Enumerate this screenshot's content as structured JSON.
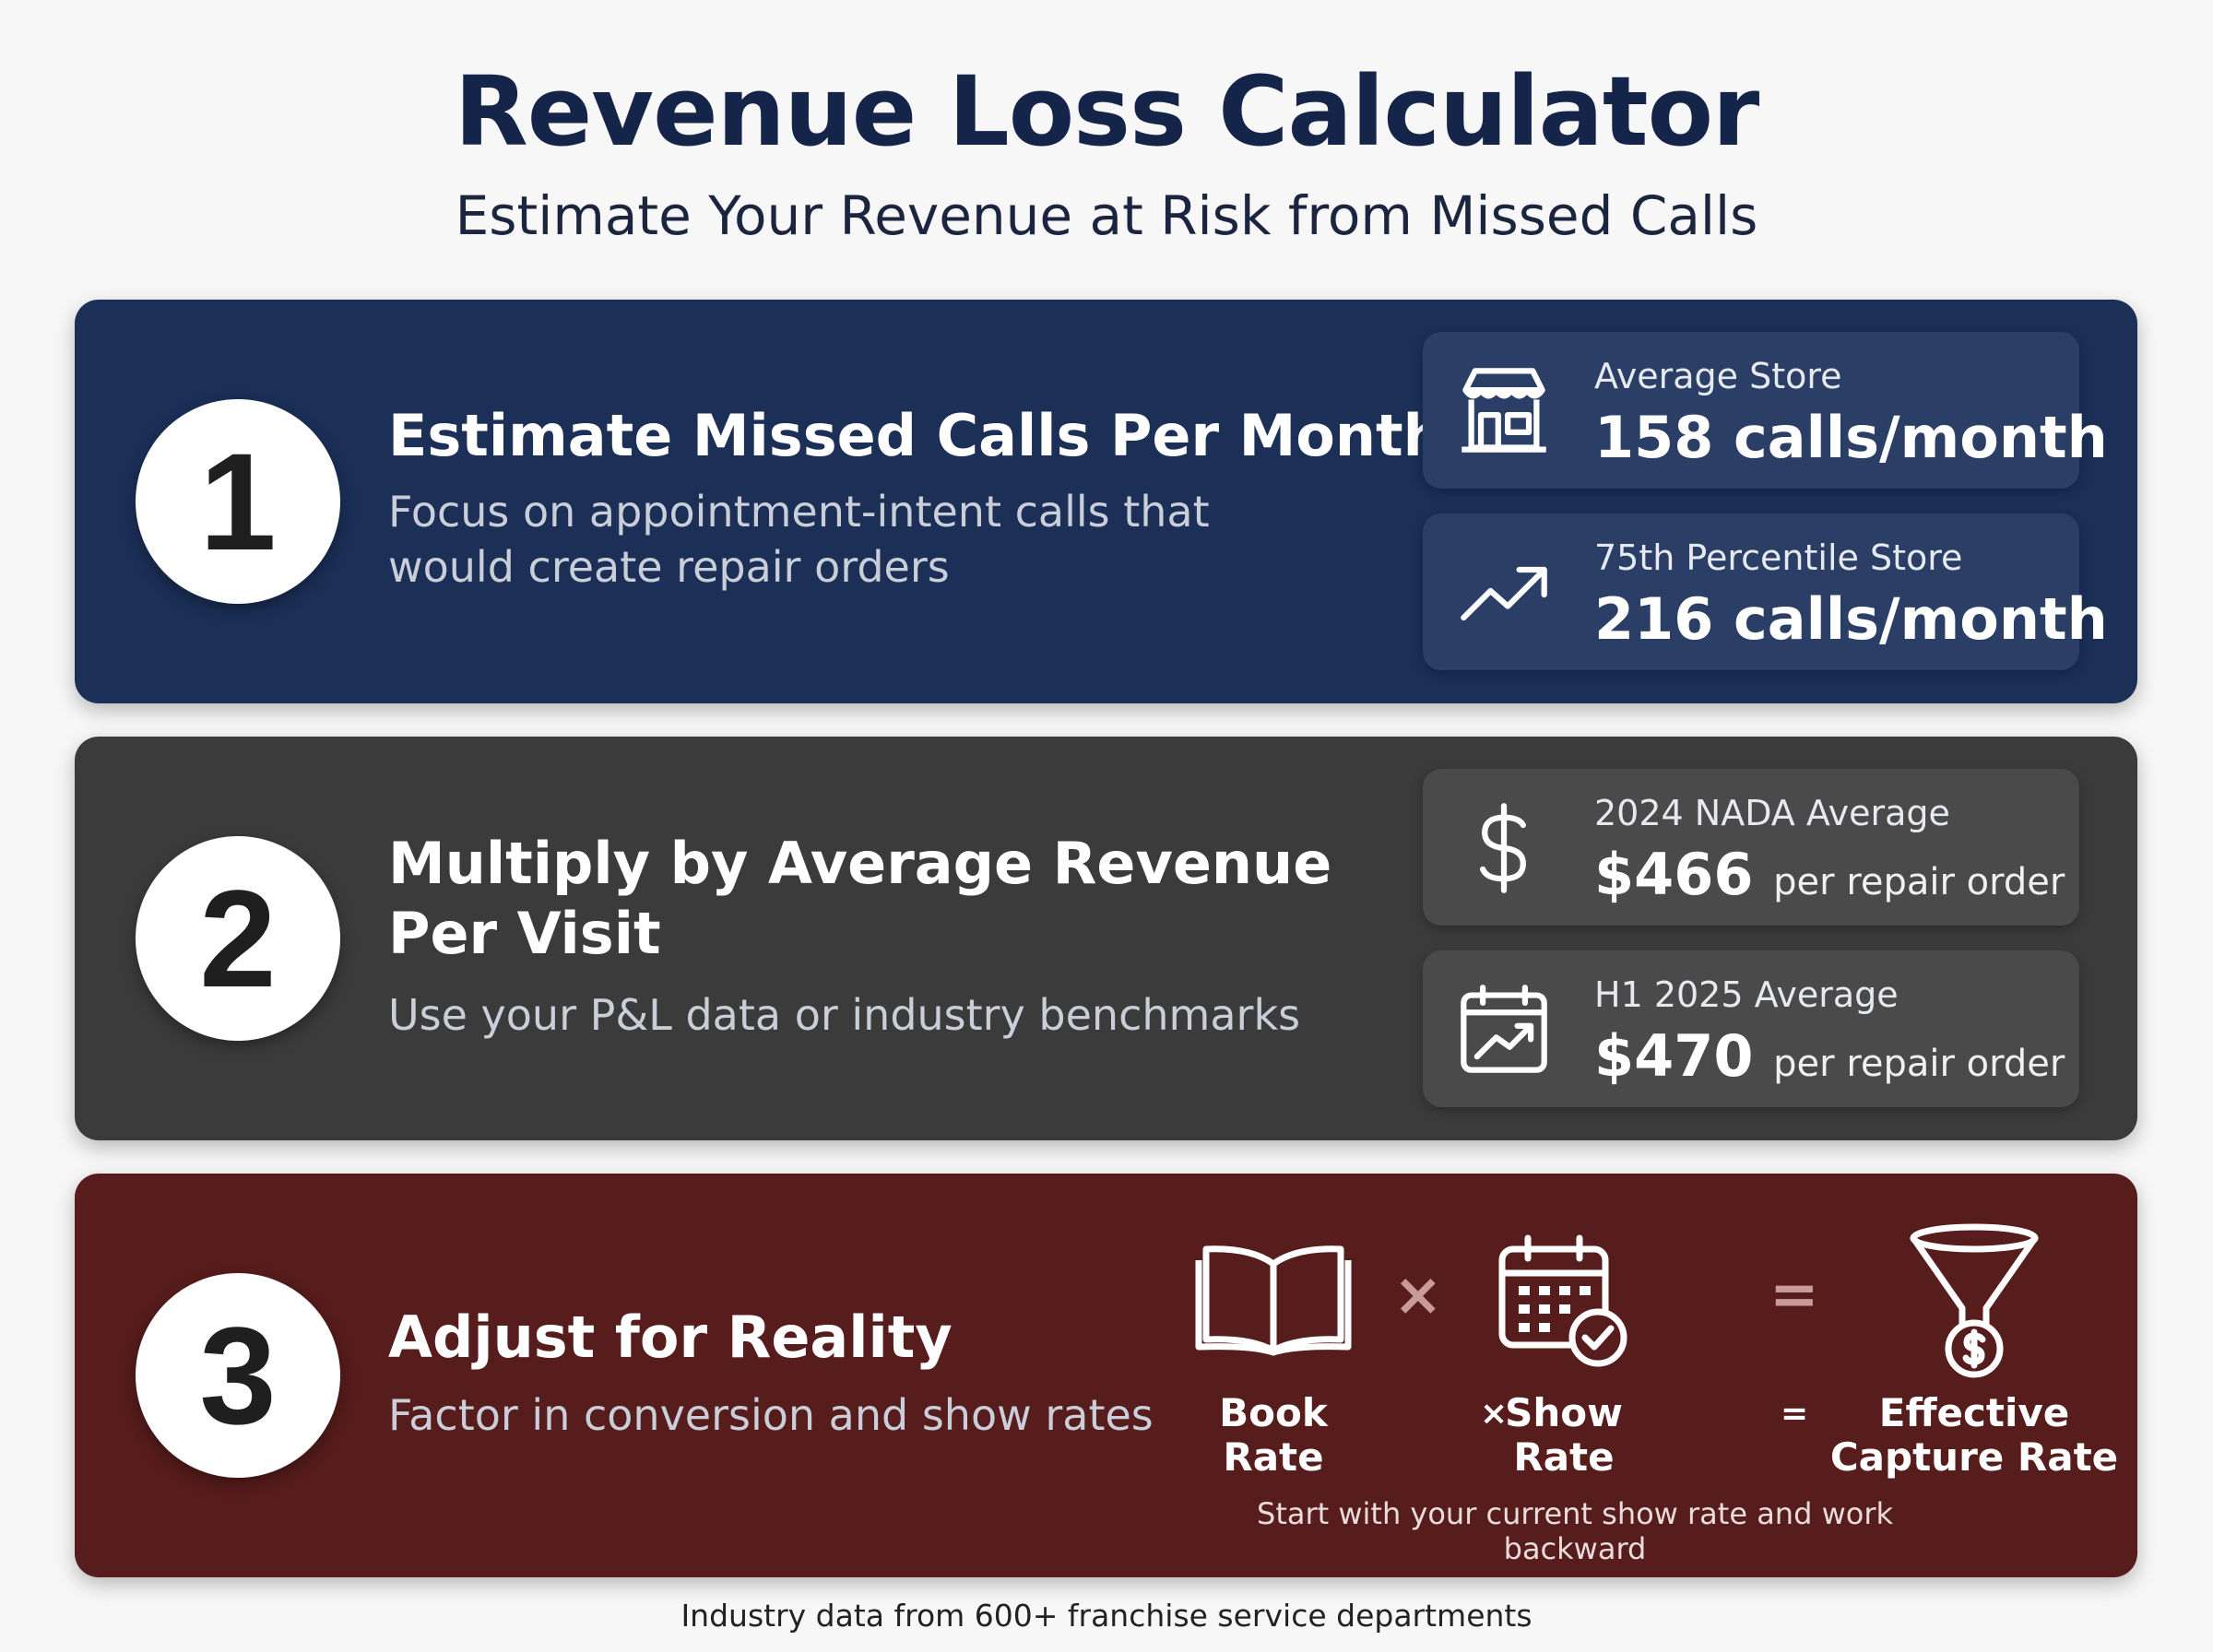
{
  "header": {
    "title": "Revenue Loss Calculator",
    "subtitle": "Estimate Your Revenue at Risk from Missed Calls"
  },
  "steps": [
    {
      "number": "1",
      "heading_lines": [
        "Estimate Missed Calls Per Month"
      ],
      "description_lines": [
        "Focus on appointment-intent calls that",
        "would create repair orders"
      ],
      "color": "#1b2f57",
      "stats": [
        {
          "icon": "store-icon",
          "label": "Average Store",
          "value": "158 calls/month",
          "unit": ""
        },
        {
          "icon": "trend-up-icon",
          "label": "75th Percentile Store",
          "value": "216 calls/month",
          "unit": ""
        }
      ]
    },
    {
      "number": "2",
      "heading_lines": [
        "Multiply by Average Revenue",
        "Per Visit"
      ],
      "description_lines": [
        "Use your P&L data or industry benchmarks"
      ],
      "color": "#3b3b3b",
      "stats": [
        {
          "icon": "dollar-icon",
          "label": "2024 NADA Average",
          "value": "$466",
          "unit": "per repair order"
        },
        {
          "icon": "calendar-chart-icon",
          "label": "H1 2025 Average",
          "value": "$470",
          "unit": "per repair order"
        }
      ]
    },
    {
      "number": "3",
      "heading_lines": [
        "Adjust for Reality"
      ],
      "description_lines": [
        "Factor in conversion and show rates"
      ],
      "color": "#571c1c",
      "formula": {
        "icons": [
          "book-icon",
          "calendar-check-icon",
          "funnel-dollar-icon"
        ],
        "multiply": "×",
        "equals": "=",
        "terms": [
          "Book Rate",
          "Show Rate"
        ],
        "result_lines": [
          "Effective",
          "Capture Rate"
        ],
        "note": "Start with your current show rate and work backward"
      }
    }
  ],
  "footer": "Industry data from 600+ franchise service departments"
}
